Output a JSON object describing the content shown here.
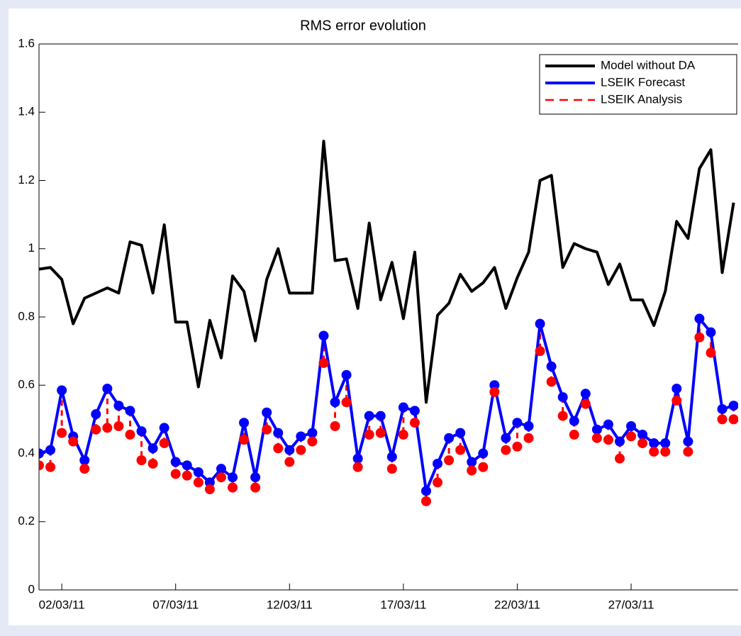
{
  "chart_data": {
    "type": "line",
    "title": "RMS error evolution",
    "x": [
      1,
      1.5,
      2,
      2.5,
      3,
      3.5,
      4,
      4.5,
      5,
      5.5,
      6,
      6.5,
      7,
      7.5,
      8,
      8.5,
      9,
      9.5,
      10,
      10.5,
      11,
      11.5,
      12,
      12.5,
      13,
      13.5,
      14,
      14.5,
      15,
      15.5,
      16,
      16.5,
      17,
      17.5,
      18,
      18.5,
      19,
      19.5,
      20,
      20.5,
      21,
      21.5,
      22,
      22.5,
      23,
      23.5,
      24,
      24.5,
      25,
      25.5,
      26,
      26.5,
      27,
      27.5,
      28,
      28.5,
      29,
      29.5,
      30,
      30.5,
      31,
      31.5
    ],
    "series": [
      {
        "name": "Model without DA",
        "color": "#000000",
        "linestyle": "solid",
        "markers": false,
        "values": [
          0.94,
          0.945,
          0.91,
          0.78,
          0.855,
          0.87,
          0.885,
          0.87,
          1.02,
          1.01,
          0.87,
          1.07,
          0.785,
          0.785,
          0.595,
          0.79,
          0.68,
          0.92,
          0.875,
          0.73,
          0.91,
          1.0,
          0.87,
          0.87,
          0.87,
          1.315,
          0.965,
          0.97,
          0.825,
          1.075,
          0.85,
          0.96,
          0.795,
          0.99,
          0.55,
          0.805,
          0.84,
          0.925,
          0.875,
          0.9,
          0.945,
          0.825,
          0.915,
          0.99,
          1.2,
          1.215,
          0.945,
          1.015,
          1.0,
          0.99,
          0.895,
          0.955,
          0.85,
          0.85,
          0.775,
          0.875,
          1.08,
          1.03,
          1.235,
          1.29,
          0.93,
          1.135
        ]
      },
      {
        "name": "LSEIK Forecast",
        "color": "#0000ff",
        "linestyle": "solid",
        "markers": true,
        "values": [
          0.4,
          0.41,
          0.585,
          0.45,
          0.38,
          0.515,
          0.59,
          0.54,
          0.525,
          0.465,
          0.415,
          0.475,
          0.375,
          0.365,
          0.345,
          0.315,
          0.355,
          0.33,
          0.49,
          0.33,
          0.52,
          0.46,
          0.41,
          0.45,
          0.46,
          0.745,
          0.55,
          0.63,
          0.385,
          0.51,
          0.51,
          0.39,
          0.535,
          0.525,
          0.29,
          0.37,
          0.445,
          0.46,
          0.375,
          0.4,
          0.6,
          0.445,
          0.49,
          0.48,
          0.78,
          0.655,
          0.565,
          0.495,
          0.575,
          0.47,
          0.485,
          0.435,
          0.48,
          0.455,
          0.43,
          0.43,
          0.59,
          0.435,
          0.795,
          0.755,
          0.53,
          0.54
        ]
      },
      {
        "name": "LSEIK Analysis",
        "color": "#ff0000",
        "linestyle": "dashed",
        "markers": true,
        "values": [
          0.365,
          0.36,
          0.46,
          0.435,
          0.355,
          0.47,
          0.475,
          0.48,
          0.455,
          0.38,
          0.37,
          0.43,
          0.34,
          0.335,
          0.315,
          0.295,
          0.33,
          0.3,
          0.44,
          0.3,
          0.47,
          0.415,
          0.375,
          0.41,
          0.435,
          0.665,
          0.48,
          0.55,
          0.36,
          0.455,
          0.46,
          0.355,
          0.455,
          0.49,
          0.26,
          0.315,
          0.38,
          0.41,
          0.35,
          0.36,
          0.58,
          0.41,
          0.42,
          0.445,
          0.7,
          0.61,
          0.51,
          0.455,
          0.545,
          0.445,
          0.44,
          0.385,
          0.45,
          0.43,
          0.405,
          0.405,
          0.555,
          0.405,
          0.74,
          0.695,
          0.5,
          0.5
        ]
      }
    ],
    "xlim": [
      1,
      31.7
    ],
    "xticks": [
      {
        "value": 2,
        "label": "02/03/11"
      },
      {
        "value": 7,
        "label": "07/03/11"
      },
      {
        "value": 12,
        "label": "12/03/11"
      },
      {
        "value": 17,
        "label": "17/03/11"
      },
      {
        "value": 22,
        "label": "22/03/11"
      },
      {
        "value": 27,
        "label": "27/03/11"
      }
    ],
    "ylim": [
      0,
      1.6
    ],
    "yticks": [
      0,
      0.2,
      0.4,
      0.6,
      0.8,
      1,
      1.2,
      1.4,
      1.6
    ],
    "grid": false,
    "legend": "northeast"
  }
}
